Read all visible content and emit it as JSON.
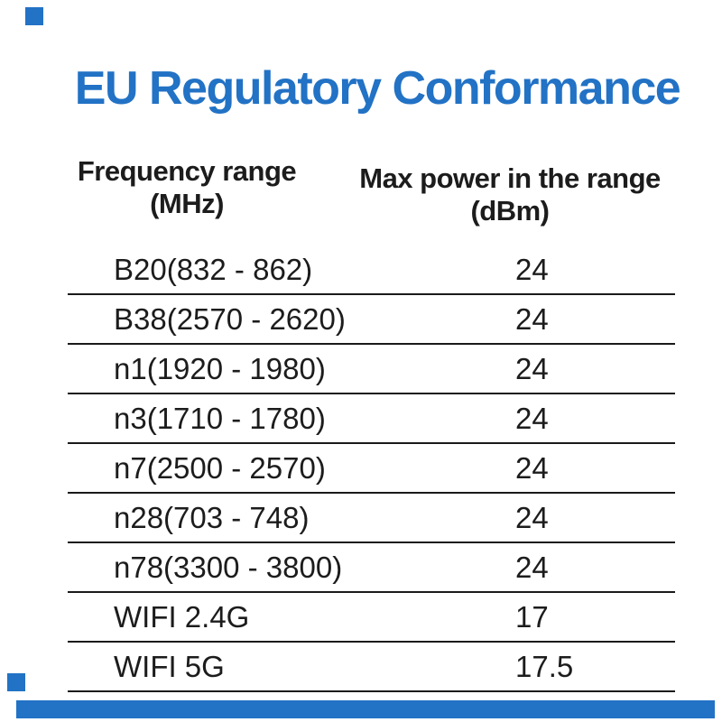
{
  "title": {
    "text": "EU Regulatory Conformance"
  },
  "colors": {
    "accent_blue": "#2272C5",
    "text": "#1C1C1C",
    "line": "#1A1A1A",
    "background": "#FFFFFF"
  },
  "table": {
    "headers": [
      {
        "line1": "Frequency range",
        "line2": "(MHz)"
      },
      {
        "line1": "Max power in the range",
        "line2": "(dBm)"
      }
    ],
    "rows": [
      {
        "frequency_range": "B20(832 - 862)",
        "max_power": "24"
      },
      {
        "frequency_range": "B38(2570 - 2620)",
        "max_power": "24"
      },
      {
        "frequency_range": "n1(1920 - 1980)",
        "max_power": "24"
      },
      {
        "frequency_range": "n3(1710 - 1780)",
        "max_power": "24"
      },
      {
        "frequency_range": "n7(2500 - 2570)",
        "max_power": "24"
      },
      {
        "frequency_range": "n28(703 - 748)",
        "max_power": "24"
      },
      {
        "frequency_range": "n78(3300 - 3800)",
        "max_power": "24"
      },
      {
        "frequency_range": "WIFI 2.4G",
        "max_power": "17"
      },
      {
        "frequency_range": "WIFI 5G",
        "max_power": "17.5"
      }
    ]
  },
  "chart_data": {
    "type": "table",
    "title": "EU Regulatory Conformance",
    "columns": [
      "Frequency range (MHz)",
      "Max power in the range (dBm)"
    ],
    "rows": [
      [
        "B20(832 - 862)",
        24
      ],
      [
        "B38(2570 - 2620)",
        24
      ],
      [
        "n1(1920 - 1980)",
        24
      ],
      [
        "n3(1710 - 1780)",
        24
      ],
      [
        "n7(2500 - 2570)",
        24
      ],
      [
        "n28(703 - 748)",
        24
      ],
      [
        "n78(3300 - 3800)",
        24
      ],
      [
        "WIFI 2.4G",
        17
      ],
      [
        "WIFI 5G",
        17.5
      ]
    ]
  }
}
